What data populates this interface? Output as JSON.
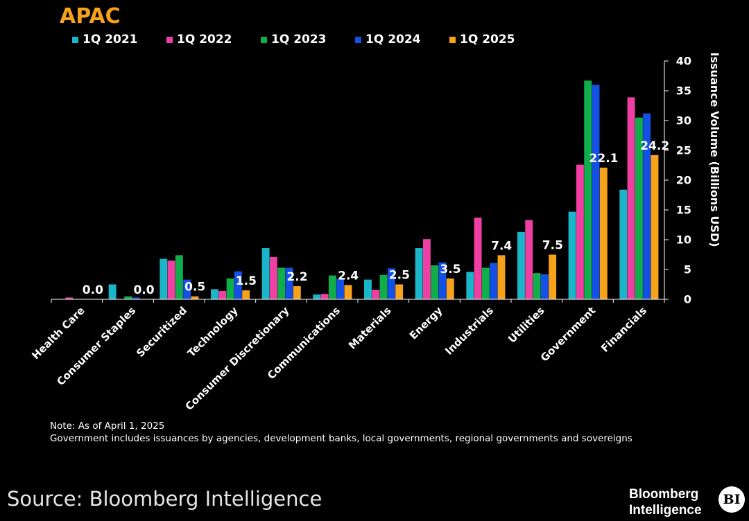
{
  "title": "APAC",
  "note": {
    "line1": "Note: As of April 1, 2025",
    "line2": "Government includes issuances by agencies, development banks, local governments, regional governments and sovereigns"
  },
  "source": "Source: Bloomberg Intelligence",
  "brand": {
    "line1": "Bloomberg",
    "line2": "Intelligence",
    "logo_text": "BI"
  },
  "colors": {
    "1Q 2021": "#1ab5c8",
    "1Q 2022": "#f03fa3",
    "1Q 2023": "#0fae4b",
    "1Q 2024": "#1450e6",
    "1Q 2025": "#f7a21b"
  },
  "chart_data": {
    "type": "bar",
    "title": "APAC",
    "ylabel": "Issuance Volume (Billions USD)",
    "xlabel": "",
    "ylim": [
      0,
      40
    ],
    "yticks": [
      0,
      5,
      10,
      15,
      20,
      25,
      30,
      35,
      40
    ],
    "y_axis_side": "right",
    "legend_position": "top",
    "categories": [
      "Health Care",
      "Consumer Staples",
      "Securitized",
      "Technology",
      "Consumer Discretionary",
      "Communications",
      "Materials",
      "Energy",
      "Industrials",
      "Utilities",
      "Government",
      "Financials"
    ],
    "series": [
      {
        "name": "1Q 2021",
        "values": [
          0.0,
          2.5,
          6.8,
          1.7,
          8.6,
          0.8,
          3.3,
          8.6,
          4.6,
          11.3,
          14.7,
          18.4
        ]
      },
      {
        "name": "1Q 2022",
        "values": [
          0.3,
          0.0,
          6.5,
          1.4,
          7.1,
          0.9,
          1.6,
          10.1,
          13.7,
          13.3,
          22.6,
          33.9
        ]
      },
      {
        "name": "1Q 2023",
        "values": [
          0.0,
          0.5,
          7.4,
          3.5,
          5.3,
          4.0,
          4.1,
          5.7,
          5.3,
          4.4,
          36.7,
          30.5
        ]
      },
      {
        "name": "1Q 2024",
        "values": [
          0.0,
          0.3,
          3.3,
          4.7,
          5.3,
          3.4,
          5.2,
          6.2,
          6.1,
          4.2,
          36.0,
          31.2
        ]
      },
      {
        "name": "1Q 2025",
        "values": [
          0.0,
          0.0,
          0.5,
          1.5,
          2.2,
          2.4,
          2.5,
          3.5,
          7.4,
          7.5,
          22.1,
          24.2
        ]
      }
    ],
    "data_labels": {
      "series": "1Q 2025",
      "labels": [
        "0.0",
        "0.0",
        "0.5",
        "1.5",
        "2.2",
        "2.4",
        "2.5",
        "3.5",
        "7.4",
        "7.5",
        "22.1",
        "24.2"
      ]
    }
  }
}
